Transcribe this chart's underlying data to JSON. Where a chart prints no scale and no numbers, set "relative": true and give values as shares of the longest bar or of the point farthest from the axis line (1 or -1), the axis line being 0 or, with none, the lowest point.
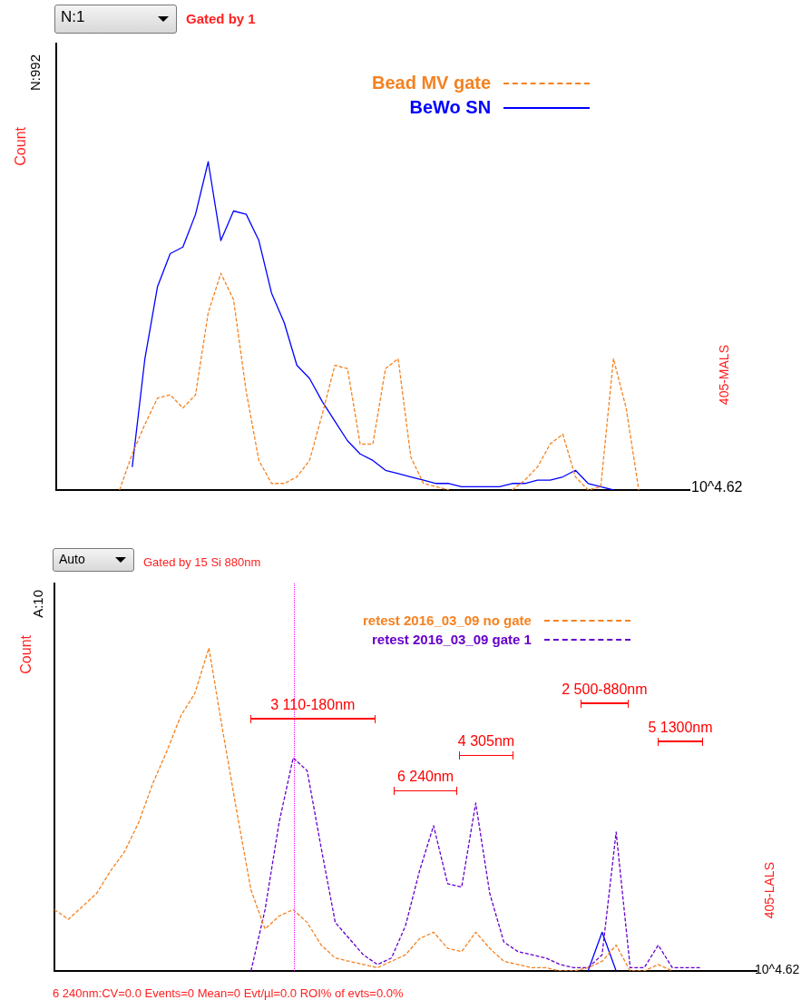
{
  "chart_data": [
    {
      "type": "line",
      "relative": true,
      "ylabel": "Count",
      "legend": "top right",
      "annotations": [
        "N:1",
        "Gated by 1",
        "N:992",
        "10^4.62",
        "405-MALS"
      ],
      "categories": [
        null,
        null,
        null,
        null,
        null,
        null,
        null,
        null,
        null,
        null,
        null,
        null,
        null,
        null,
        null,
        null,
        null,
        null,
        null,
        null,
        null,
        null,
        null,
        null,
        null,
        null,
        null,
        null,
        null,
        null,
        null,
        null,
        null,
        null,
        null,
        null,
        null,
        null,
        null,
        null,
        null,
        null,
        null,
        null,
        null,
        null,
        null,
        null,
        null,
        null,
        null
      ],
      "series": [
        {
          "name": "Bead MV gate",
          "color": "#f58220",
          "line_style": "dashed",
          "values": [
            null,
            null,
            null,
            null,
            null,
            0,
            0.11,
            0.2,
            0.28,
            0.29,
            0.25,
            0.29,
            0.54,
            0.66,
            0.58,
            0.3,
            0.09,
            0.02,
            0.02,
            0.04,
            0.09,
            0.23,
            0.38,
            0.37,
            0.14,
            0.14,
            0.37,
            0.4,
            0.1,
            0.02,
            0.01,
            0,
            null,
            null,
            null,
            null,
            0,
            0.03,
            0.07,
            0.14,
            0.17,
            0.04,
            0,
            0.01,
            0.4,
            0.25,
            0,
            null,
            null,
            null,
            null
          ]
        },
        {
          "name": "BeWo SN",
          "color": "#0000ff",
          "line_style": "solid",
          "values": [
            null,
            null,
            null,
            null,
            null,
            null,
            0.07,
            0.4,
            0.62,
            0.72,
            0.74,
            0.84,
            1.0,
            0.76,
            0.85,
            0.84,
            0.76,
            0.6,
            0.51,
            0.38,
            0.34,
            0.27,
            0.21,
            0.15,
            0.11,
            0.09,
            0.06,
            0.05,
            0.04,
            0.03,
            0.02,
            0.02,
            0.01,
            0.01,
            0.01,
            0.01,
            0.02,
            0.02,
            0.03,
            0.03,
            0.04,
            0.06,
            0.02,
            0.01,
            0,
            null,
            null,
            null,
            null,
            null,
            null
          ]
        }
      ]
    },
    {
      "type": "line",
      "relative": true,
      "ylabel": "Count",
      "legend": "top right",
      "annotations": [
        "Auto",
        "Gated by 15 Si 880nm",
        "A:10",
        "6 240nm:CV=0.0  Events=0  Mean=0   Evt/µl=0.0  ROI% of evts=0.0%",
        "10^4.62",
        "3 110-180nm",
        "2 500-880nm",
        "5 1300nm",
        "4 305nm",
        "6 240nm",
        "405-LALS"
      ],
      "categories": [
        null,
        null,
        null,
        null,
        null,
        null,
        null,
        null,
        null,
        null,
        null,
        null,
        null,
        null,
        null,
        null,
        null,
        null,
        null,
        null,
        null,
        null,
        null,
        null,
        null,
        null,
        null,
        null,
        null,
        null,
        null,
        null,
        null,
        null,
        null,
        null,
        null,
        null,
        null,
        null,
        null,
        null,
        null,
        null,
        null,
        null,
        null,
        null,
        null,
        null,
        null
      ],
      "series": [
        {
          "name": "retest 2016_03_09 no gate",
          "color": "#f58220",
          "line_style": "dashed",
          "values": [
            0.19,
            0.16,
            0.2,
            0.24,
            0.31,
            0.37,
            0.46,
            0.58,
            0.68,
            0.79,
            0.86,
            1.0,
            0.74,
            0.49,
            0.25,
            0.13,
            0.17,
            0.19,
            0.15,
            0.08,
            0.04,
            0.03,
            0.02,
            0.01,
            0.03,
            0.05,
            0.1,
            0.12,
            0.07,
            0.06,
            0.12,
            0.07,
            0.03,
            0.02,
            0.01,
            0.01,
            0,
            0,
            0.01,
            0.03,
            0.08,
            0,
            0,
            0.02,
            0,
            null,
            null,
            null,
            null,
            null,
            null
          ]
        },
        {
          "name": "retest 2016_03_09 gate 1",
          "color": "#6600cc",
          "line_style": "dashed",
          "values": [
            null,
            null,
            null,
            null,
            null,
            null,
            null,
            null,
            null,
            null,
            null,
            null,
            null,
            null,
            0,
            0.19,
            0.46,
            0.66,
            0.62,
            0.38,
            0.15,
            0.1,
            0.05,
            0.02,
            0.04,
            0.14,
            0.31,
            0.45,
            0.27,
            0.26,
            0.52,
            0.24,
            0.09,
            0.06,
            0.05,
            0.04,
            0.02,
            0.01,
            0.01,
            0.05,
            0.43,
            0.01,
            0.01,
            0.08,
            0.01,
            0.01,
            0.01,
            null,
            null,
            null,
            null
          ]
        },
        {
          "color": "#0000ff",
          "line_style": "solid",
          "values": [
            null,
            null,
            null,
            null,
            null,
            null,
            null,
            null,
            null,
            null,
            null,
            null,
            null,
            null,
            null,
            null,
            null,
            null,
            null,
            null,
            null,
            null,
            null,
            null,
            null,
            null,
            null,
            null,
            null,
            null,
            null,
            null,
            null,
            null,
            null,
            null,
            null,
            null,
            0,
            0.12,
            0,
            null,
            null,
            null,
            null,
            null,
            null,
            null,
            null,
            null,
            null
          ]
        }
      ]
    }
  ]
}
